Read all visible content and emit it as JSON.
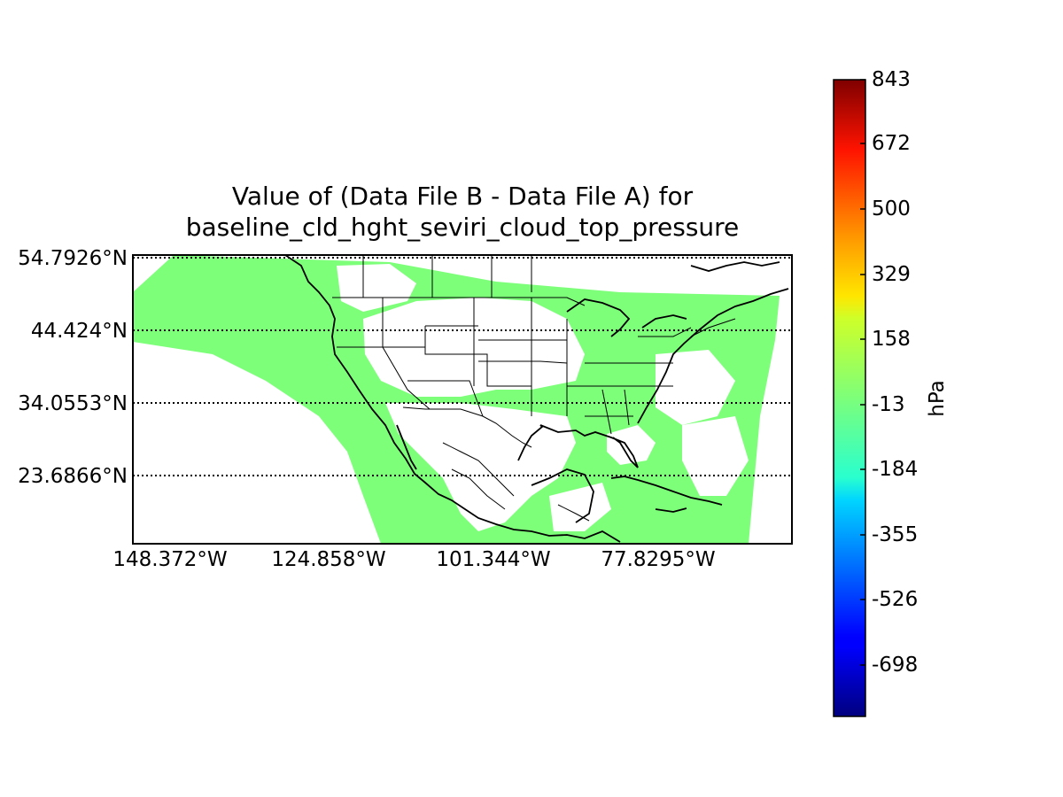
{
  "title": {
    "line1": "Value of (Data File B - Data File A) for",
    "line2": "baseline_cld_hght_seviri_cloud_top_pressure"
  },
  "map": {
    "latitude_labels": [
      "54.7926°N",
      "44.424°N",
      "34.0553°N",
      "23.6866°N"
    ],
    "longitude_labels": [
      "148.372°W",
      "124.858°W",
      "101.344°W",
      "77.8295°W"
    ],
    "gridlines": "dotted",
    "data_fill_color": "#7dff7a",
    "coastline_color": "#000000",
    "region": "North America"
  },
  "colorbar": {
    "unit_label": "hPa",
    "tick_labels": [
      "843",
      "672",
      "500",
      "329",
      "158",
      "-13",
      "-184",
      "-355",
      "-526",
      "-698"
    ],
    "colormap": "jet",
    "range": [
      -869,
      843
    ]
  }
}
